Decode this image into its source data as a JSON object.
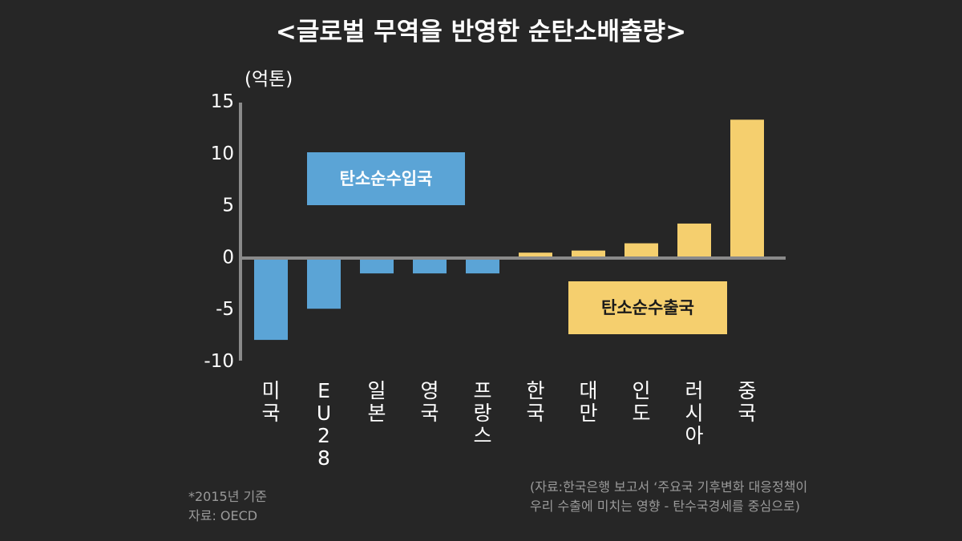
{
  "title": "<글로벌 무역을 반영한 순탄소배출량>",
  "chart_data": {
    "type": "bar",
    "unit_label": "(억톤)",
    "categories": [
      "미국",
      "EU28",
      "일본",
      "영국",
      "프랑스",
      "한국",
      "대만",
      "인도",
      "러시아",
      "중국"
    ],
    "values": [
      -8.0,
      -5.0,
      -1.6,
      -1.6,
      -1.6,
      0.4,
      0.6,
      1.3,
      3.2,
      13.2
    ],
    "ylim": [
      -10,
      15
    ],
    "yticks": [
      15,
      10,
      5,
      0,
      -5,
      -10
    ],
    "grid": false,
    "colors": {
      "negative": "#5ba4d6",
      "positive": "#f5cf6e",
      "axis": "#8a8a8a"
    },
    "annotations": {
      "importers": "탄소순수입국",
      "exporters": "탄소순수출국"
    }
  },
  "notes": {
    "left": [
      "*2015년 기준",
      "자료: OECD"
    ],
    "right": [
      "(자료:한국은행 보고서 ‘주요국 기후변화 대응정책이",
      "우리 수출에 미치는 영향 - 탄수국경세를 중심으로)"
    ]
  }
}
